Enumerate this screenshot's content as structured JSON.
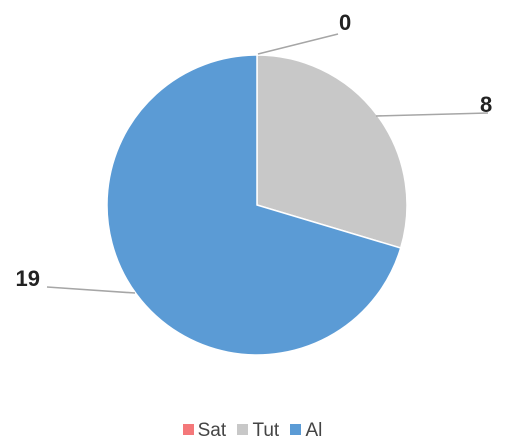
{
  "chart_data": {
    "type": "pie",
    "title": "",
    "categories": [
      "Sat",
      "Tut",
      "Al"
    ],
    "values": [
      0,
      8,
      19
    ],
    "data_labels": [
      "0",
      "8",
      "19"
    ],
    "colors": [
      "#f4787a",
      "#c8c8c8",
      "#5b9bd5"
    ],
    "legend_position": "bottom",
    "start_angle": "top, clockwise"
  }
}
